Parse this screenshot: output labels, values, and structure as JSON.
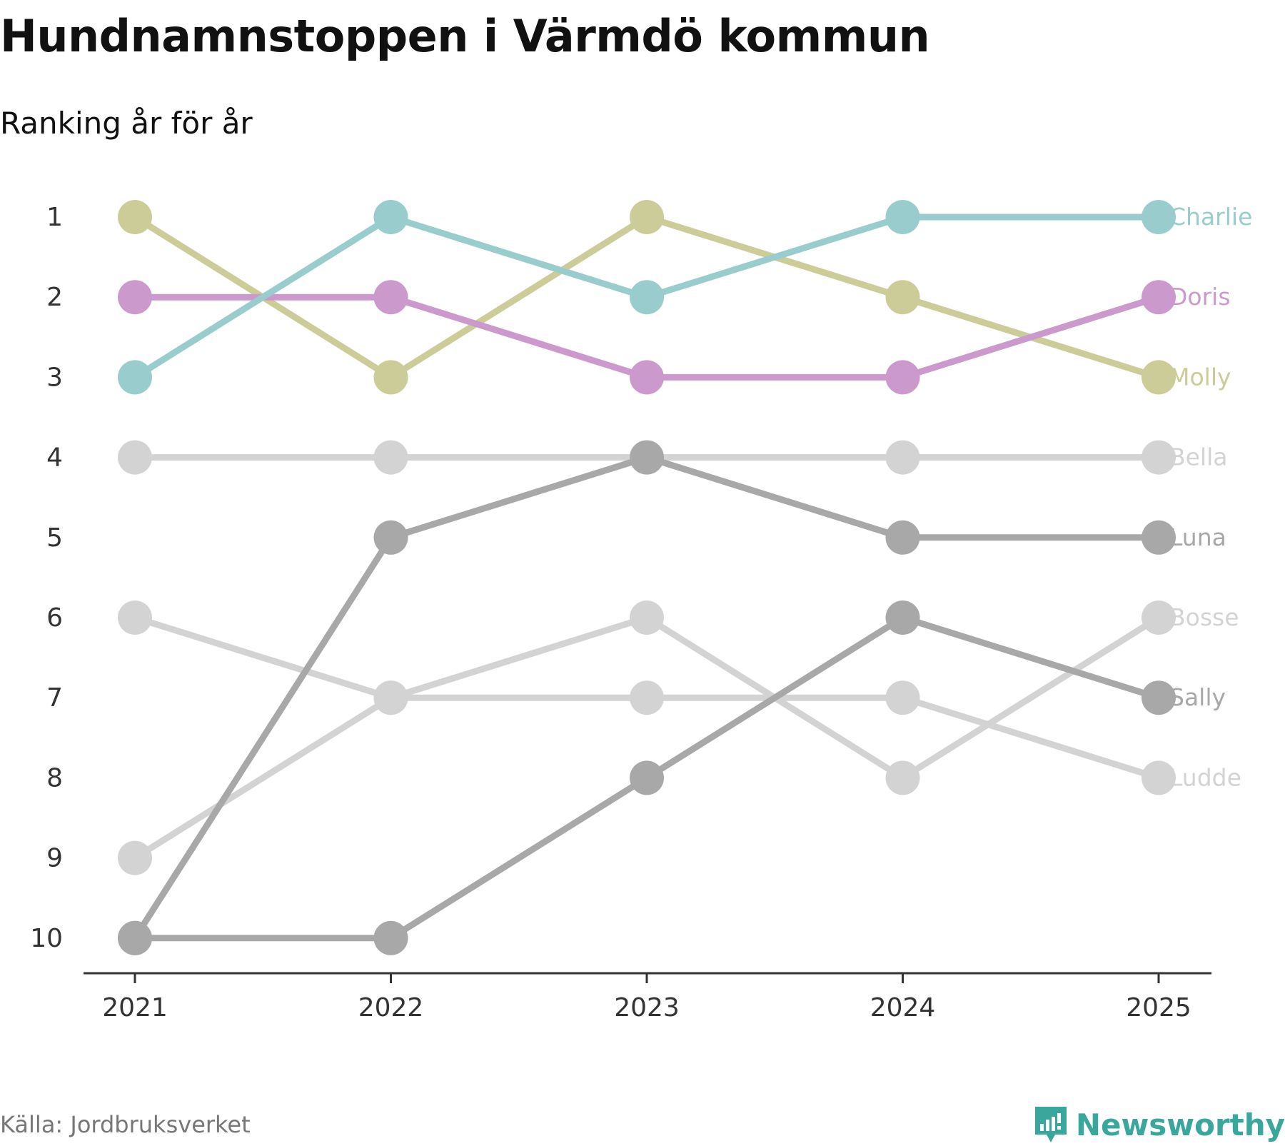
{
  "chart_data": {
    "type": "line",
    "title": "Hundnamnstoppen i Värmdö kommun",
    "subtitle": "Ranking år för år",
    "x": [
      "2021",
      "2022",
      "2023",
      "2024",
      "2025"
    ],
    "y_ticks": [
      "1",
      "2",
      "3",
      "4",
      "5",
      "6",
      "7",
      "8",
      "9",
      "10"
    ],
    "ylim": [
      1,
      10
    ],
    "y_inverted": true,
    "series": [
      {
        "name": "Bella",
        "color": "#d3d3d3",
        "ranks": [
          4,
          4,
          4,
          4,
          4
        ]
      },
      {
        "name": "Bosse",
        "color": "#d3d3d3",
        "ranks": [
          9,
          7,
          6,
          8,
          6
        ]
      },
      {
        "name": "Ludde",
        "color": "#d3d3d3",
        "ranks": [
          6,
          7,
          7,
          7,
          8
        ]
      },
      {
        "name": "Luna",
        "color": "#a8a8a8",
        "ranks": [
          10,
          5,
          4,
          5,
          5
        ]
      },
      {
        "name": "Sally",
        "color": "#a8a8a8",
        "ranks": [
          10,
          10,
          8,
          6,
          7
        ]
      },
      {
        "name": "Molly",
        "color": "#cccc99",
        "ranks": [
          1,
          3,
          1,
          2,
          3
        ]
      },
      {
        "name": "Doris",
        "color": "#cc99cc",
        "ranks": [
          2,
          2,
          3,
          3,
          2
        ]
      },
      {
        "name": "Charlie",
        "color": "#99cccc",
        "ranks": [
          3,
          1,
          2,
          1,
          1
        ]
      }
    ]
  },
  "source": "Källa: Jordbruksverket",
  "brand": {
    "name": "Newsworthy",
    "color": "#3aa79c",
    "icon": "newsworthy-logo-icon"
  }
}
